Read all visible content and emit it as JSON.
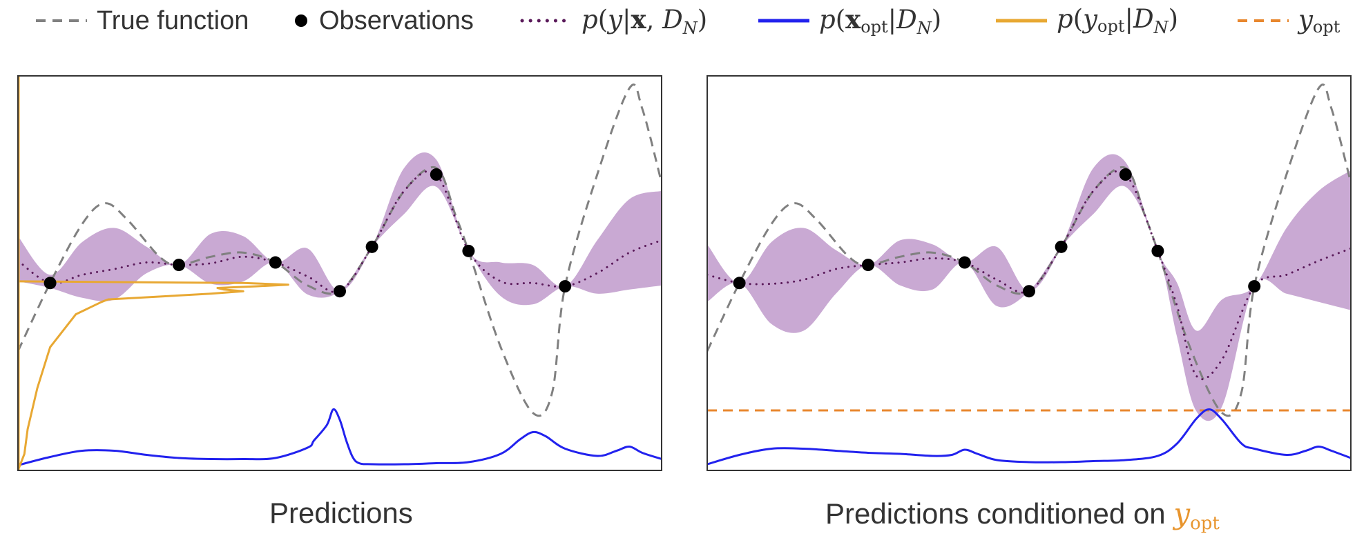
{
  "legend": {
    "true_function": "True function",
    "observations": "Observations",
    "posterior_predictive": "p(y|x, D_N)",
    "posterior_xopt": "p(x_opt|D_N)",
    "posterior_yopt": "p(y_opt|D_N)",
    "yopt": "y_opt"
  },
  "colors": {
    "true_function": "#808080",
    "observations": "#000000",
    "mean": "#5a1a5a",
    "band": "#c9a9d3",
    "xopt": "#2222ee",
    "yopt_density": "#e8a833",
    "yopt_line": "#e8872e",
    "frame": "#333333"
  },
  "chart_data": [
    {
      "type": "line",
      "title": "Predictions",
      "xlabel": "",
      "ylabel": "",
      "xlim": [
        0,
        1
      ],
      "ylim": [
        -2.5,
        2.3
      ],
      "grid": false,
      "observations": {
        "x": [
          0.05,
          0.25,
          0.4,
          0.5,
          0.55,
          0.65,
          0.7,
          0.85
        ],
        "y": [
          -0.22,
          0.0,
          0.03,
          -0.32,
          0.22,
          1.1,
          0.17,
          -0.26
        ]
      },
      "true_function": {
        "x": [
          0,
          0.05,
          0.1,
          0.135,
          0.17,
          0.22,
          0.25,
          0.3,
          0.35,
          0.4,
          0.45,
          0.5,
          0.55,
          0.6,
          0.65,
          0.68,
          0.7,
          0.75,
          0.8,
          0.83,
          0.85,
          0.9,
          0.95,
          0.97,
          1.0
        ],
        "y": [
          -1.05,
          -0.22,
          0.5,
          0.75,
          0.55,
          0.1,
          0.0,
          0.1,
          0.15,
          0.03,
          -0.25,
          -0.32,
          0.22,
          0.9,
          1.18,
          0.6,
          0.17,
          -1.0,
          -1.8,
          -1.55,
          -0.26,
          1.1,
          2.15,
          1.9,
          1.0
        ]
      },
      "mean": {
        "x": [
          0,
          0.05,
          0.1,
          0.15,
          0.2,
          0.25,
          0.3,
          0.35,
          0.4,
          0.45,
          0.5,
          0.55,
          0.6,
          0.65,
          0.7,
          0.75,
          0.8,
          0.85,
          0.9,
          0.95,
          1.0
        ],
        "y": [
          0.05,
          -0.22,
          -0.12,
          -0.05,
          0.03,
          0.0,
          0.02,
          0.1,
          0.03,
          -0.14,
          -0.32,
          0.22,
          0.9,
          1.1,
          0.17,
          -0.2,
          -0.22,
          -0.26,
          -0.1,
          0.15,
          0.3
        ]
      },
      "band_upper": [
        0.35,
        -0.12,
        0.28,
        0.45,
        0.22,
        0.0,
        0.38,
        0.35,
        0.03,
        0.2,
        -0.32,
        0.22,
        1.18,
        1.28,
        0.17,
        0.03,
        0.0,
        -0.26,
        0.3,
        0.8,
        0.9
      ],
      "band_lower": [
        -0.2,
        -0.28,
        -0.4,
        -0.42,
        -0.1,
        0.0,
        -0.23,
        -0.2,
        0.03,
        -0.36,
        -0.32,
        0.22,
        0.62,
        0.95,
        0.17,
        -0.38,
        -0.48,
        -0.26,
        -0.35,
        -0.3,
        -0.25
      ],
      "xopt_density": {
        "x": [
          0,
          0.05,
          0.1,
          0.15,
          0.2,
          0.25,
          0.3,
          0.35,
          0.4,
          0.45,
          0.46,
          0.48,
          0.49,
          0.5,
          0.51,
          0.52,
          0.53,
          0.55,
          0.6,
          0.65,
          0.7,
          0.75,
          0.78,
          0.8,
          0.82,
          0.85,
          0.9,
          0.93,
          0.95,
          0.97,
          1.0
        ],
        "y": [
          0.01,
          0.09,
          0.15,
          0.15,
          0.11,
          0.08,
          0.07,
          0.07,
          0.08,
          0.18,
          0.25,
          0.4,
          0.55,
          0.45,
          0.25,
          0.09,
          0.03,
          0.02,
          0.02,
          0.03,
          0.04,
          0.12,
          0.26,
          0.33,
          0.29,
          0.17,
          0.1,
          0.15,
          0.19,
          0.13,
          0.07
        ]
      },
      "yopt_density": {
        "y": [
          -2.5,
          -2.3,
          -2.0,
          -1.5,
          -1.0,
          -0.6,
          -0.45,
          -0.42,
          -0.35,
          -0.32,
          -0.3,
          -0.28,
          -0.26,
          -0.24,
          -0.22,
          -0.2
        ],
        "x": [
          0,
          0.01,
          0.015,
          0.03,
          0.05,
          0.09,
          0.13,
          0.14,
          0.3,
          0.35,
          0.32,
          0.31,
          0.37,
          0.42,
          0.35,
          0.0
        ]
      }
    },
    {
      "type": "line",
      "title": "Predictions conditioned on y_opt",
      "xlabel": "",
      "ylabel": "",
      "xlim": [
        0,
        1
      ],
      "ylim": [
        -2.5,
        2.3
      ],
      "grid": false,
      "yopt_value": -1.77,
      "observations": {
        "x": [
          0.05,
          0.25,
          0.4,
          0.5,
          0.55,
          0.65,
          0.7,
          0.85
        ],
        "y": [
          -0.22,
          0.0,
          0.03,
          -0.32,
          0.22,
          1.1,
          0.17,
          -0.26
        ]
      },
      "true_function": {
        "x": [
          0,
          0.05,
          0.1,
          0.135,
          0.17,
          0.22,
          0.25,
          0.3,
          0.35,
          0.4,
          0.45,
          0.5,
          0.55,
          0.6,
          0.65,
          0.68,
          0.7,
          0.75,
          0.8,
          0.83,
          0.85,
          0.9,
          0.95,
          0.97,
          1.0
        ],
        "y": [
          -1.05,
          -0.22,
          0.5,
          0.75,
          0.55,
          0.1,
          0.0,
          0.1,
          0.15,
          0.03,
          -0.25,
          -0.32,
          0.22,
          0.9,
          1.18,
          0.6,
          0.17,
          -1.0,
          -1.8,
          -1.55,
          -0.26,
          1.1,
          2.15,
          1.9,
          1.0
        ]
      },
      "mean": {
        "x": [
          0,
          0.05,
          0.1,
          0.15,
          0.2,
          0.25,
          0.3,
          0.35,
          0.4,
          0.45,
          0.5,
          0.55,
          0.6,
          0.65,
          0.7,
          0.73,
          0.76,
          0.8,
          0.85,
          0.9,
          0.95,
          1.0
        ],
        "y": [
          -0.12,
          -0.22,
          -0.23,
          -0.18,
          -0.05,
          0.0,
          0.03,
          0.08,
          0.03,
          -0.18,
          -0.32,
          0.22,
          0.9,
          1.1,
          0.17,
          -0.5,
          -1.35,
          -1.15,
          -0.26,
          -0.12,
          0.05,
          0.2
        ]
      },
      "band_upper": [
        0.25,
        -0.22,
        0.28,
        0.45,
        0.18,
        0.0,
        0.3,
        0.25,
        0.03,
        0.22,
        -0.32,
        0.22,
        1.18,
        1.25,
        0.17,
        -0.22,
        -0.8,
        -0.42,
        -0.26,
        0.45,
        0.9,
        1.15
      ],
      "band_lower": [
        -0.45,
        -0.22,
        -0.72,
        -0.8,
        -0.35,
        0.0,
        -0.25,
        -0.3,
        0.03,
        -0.5,
        -0.32,
        0.22,
        0.62,
        0.95,
        0.17,
        -0.88,
        -1.78,
        -1.72,
        -0.26,
        -0.35,
        -0.45,
        -0.55
      ],
      "xopt_density": {
        "x": [
          0,
          0.05,
          0.1,
          0.15,
          0.2,
          0.25,
          0.3,
          0.35,
          0.38,
          0.4,
          0.42,
          0.45,
          0.5,
          0.55,
          0.6,
          0.65,
          0.7,
          0.73,
          0.76,
          0.78,
          0.8,
          0.83,
          0.85,
          0.9,
          0.93,
          0.95,
          0.97,
          1.0
        ],
        "y": [
          0.02,
          0.11,
          0.17,
          0.17,
          0.15,
          0.13,
          0.12,
          0.1,
          0.11,
          0.16,
          0.12,
          0.06,
          0.04,
          0.04,
          0.05,
          0.06,
          0.1,
          0.22,
          0.46,
          0.55,
          0.45,
          0.22,
          0.17,
          0.11,
          0.15,
          0.19,
          0.15,
          0.08
        ]
      }
    }
  ]
}
